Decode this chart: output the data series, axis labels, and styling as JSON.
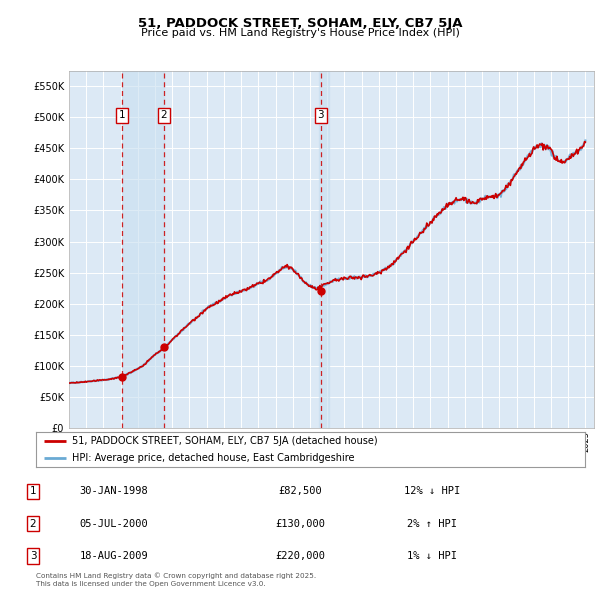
{
  "title1": "51, PADDOCK STREET, SOHAM, ELY, CB7 5JA",
  "title2": "Price paid vs. HM Land Registry's House Price Index (HPI)",
  "background_color": "#dce9f5",
  "plot_bg": "#dce9f5",
  "legend_line1": "51, PADDOCK STREET, SOHAM, ELY, CB7 5JA (detached house)",
  "legend_line2": "HPI: Average price, detached house, East Cambridgeshire",
  "transactions": [
    {
      "num": 1,
      "date": "30-JAN-1998",
      "price": 82500,
      "price_str": "£82,500",
      "pct": "12%",
      "dir": "↓",
      "year": 1998.08
    },
    {
      "num": 2,
      "date": "05-JUL-2000",
      "price": 130000,
      "price_str": "£130,000",
      "pct": "2%",
      "dir": "↑",
      "year": 2000.51
    },
    {
      "num": 3,
      "date": "18-AUG-2009",
      "price": 220000,
      "price_str": "£220,000",
      "pct": "1%",
      "dir": "↓",
      "year": 2009.63
    }
  ],
  "footnote1": "Contains HM Land Registry data © Crown copyright and database right 2025.",
  "footnote2": "This data is licensed under the Open Government Licence v3.0.",
  "ylim_min": 0,
  "ylim_max": 575000,
  "yticks": [
    0,
    50000,
    100000,
    150000,
    200000,
    250000,
    300000,
    350000,
    400000,
    450000,
    500000,
    550000
  ],
  "ytick_labels": [
    "£0",
    "£50K",
    "£100K",
    "£150K",
    "£200K",
    "£250K",
    "£300K",
    "£350K",
    "£400K",
    "£450K",
    "£500K",
    "£550K"
  ],
  "hpi_color": "#6aaad4",
  "price_color": "#cc0000",
  "dot_color": "#cc0000",
  "vline_color": "#cc0000",
  "shade_color": "#c8dff0",
  "num_box_edge": "#cc0000"
}
